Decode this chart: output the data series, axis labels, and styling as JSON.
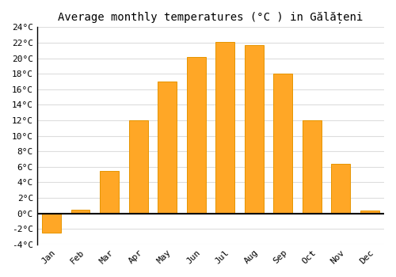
{
  "title": "Average monthly temperatures (°C ) in Gălățeni",
  "months": [
    "Jan",
    "Feb",
    "Mar",
    "Apr",
    "May",
    "Jun",
    "Jul",
    "Aug",
    "Sep",
    "Oct",
    "Nov",
    "Dec"
  ],
  "values": [
    -2.5,
    0.5,
    5.5,
    12.0,
    17.0,
    20.2,
    22.1,
    21.7,
    18.0,
    12.0,
    6.4,
    0.4
  ],
  "bar_color": "#FFA726",
  "bar_edge_color": "#E69500",
  "ylim": [
    -4,
    24
  ],
  "yticks": [
    -4,
    -2,
    0,
    2,
    4,
    6,
    8,
    10,
    12,
    14,
    16,
    18,
    20,
    22,
    24
  ],
  "background_color": "#ffffff",
  "grid_color": "#dddddd",
  "title_fontsize": 10,
  "tick_fontsize": 8,
  "font_family": "monospace"
}
